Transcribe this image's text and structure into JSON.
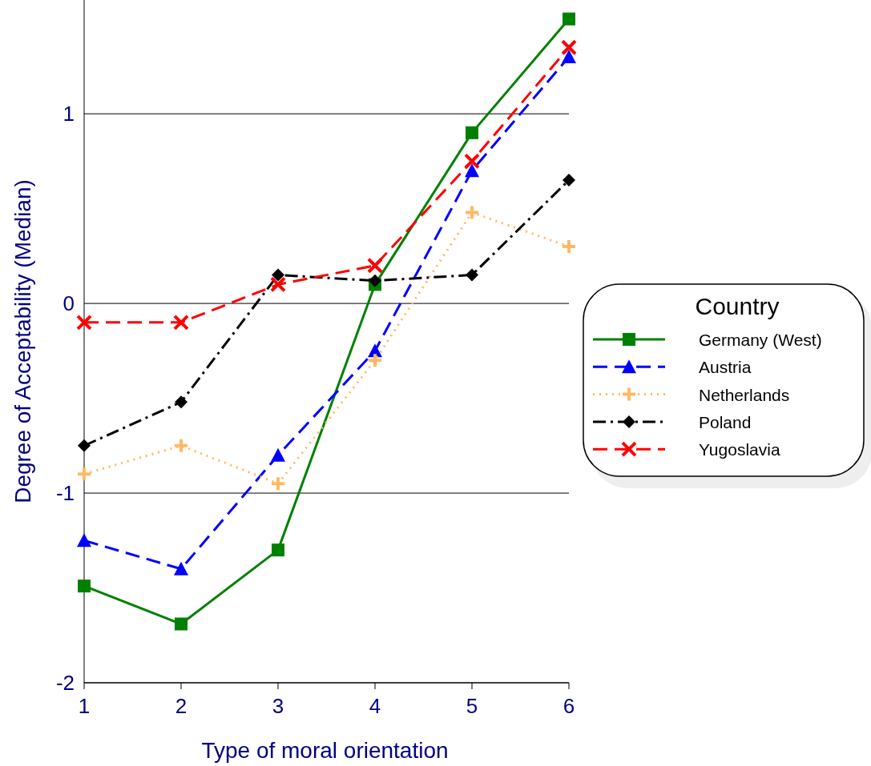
{
  "chart_data": {
    "type": "line",
    "xlabel": "Type of moral orientation",
    "ylabel": "Degree of Acceptability (Median)",
    "legend_title": "Country",
    "x": [
      1,
      2,
      3,
      4,
      5,
      6
    ],
    "xlim": [
      1,
      6
    ],
    "xticks": [
      1,
      2,
      3,
      4,
      5,
      6
    ],
    "ylim": [
      -2,
      1.6
    ],
    "yticks": [
      -2,
      -1,
      0,
      1
    ],
    "grid": "y",
    "legend": "right",
    "series": [
      {
        "name": "Germany (West)",
        "color": "#008000",
        "marker": "square",
        "line_style": "solid",
        "values": [
          -1.49,
          -1.69,
          -1.3,
          0.1,
          0.9,
          1.5
        ]
      },
      {
        "name": "Austria",
        "color": "#0000ff",
        "marker": "triangle",
        "line_style": "dashed",
        "values": [
          -1.25,
          -1.4,
          -0.8,
          -0.25,
          0.7,
          1.3
        ]
      },
      {
        "name": "Netherlands",
        "color": "#ffb966",
        "marker": "plus",
        "line_style": "dotted",
        "values": [
          -0.9,
          -0.75,
          -0.95,
          -0.3,
          0.48,
          0.3
        ]
      },
      {
        "name": "Poland",
        "color": "#000000",
        "marker": "diamond",
        "line_style": "dashdot",
        "values": [
          -0.75,
          -0.52,
          0.15,
          0.12,
          0.15,
          0.65
        ]
      },
      {
        "name": "Yugoslavia",
        "color": "#ff0000",
        "marker": "cross",
        "line_style": "dashed",
        "values": [
          -0.1,
          -0.1,
          0.1,
          0.2,
          0.75,
          1.35
        ]
      }
    ]
  }
}
